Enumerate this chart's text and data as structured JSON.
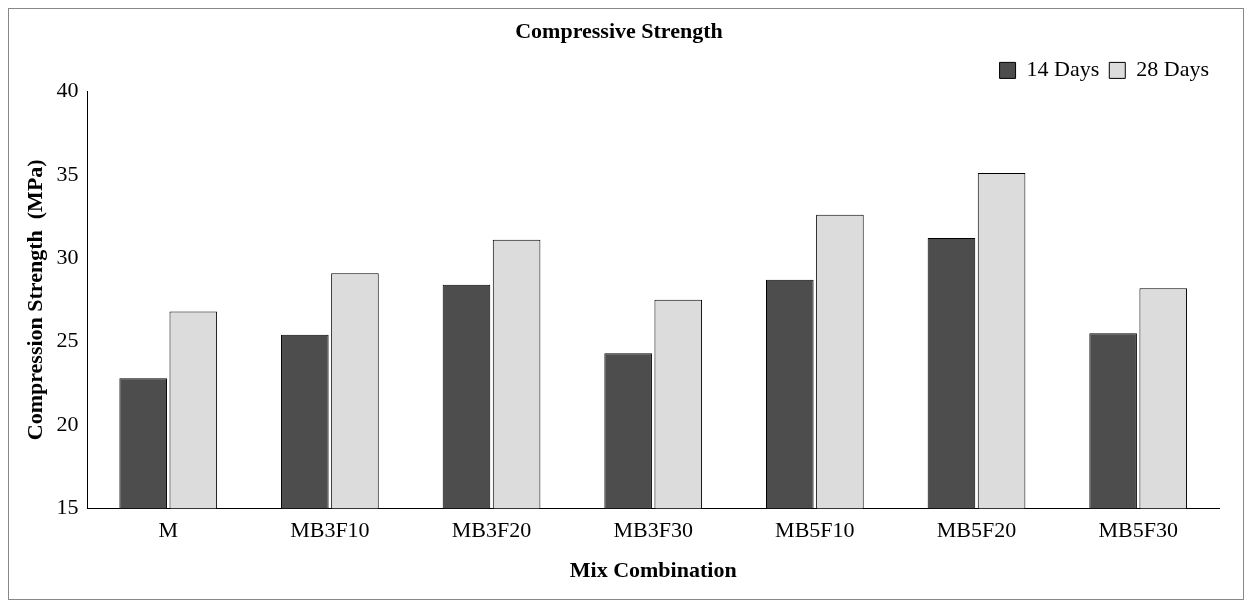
{
  "chart_data": {
    "type": "bar",
    "title": "Compressive Strength",
    "xlabel": "Mix Combination",
    "ylabel": "Compression Strength  (MPa)",
    "categories": [
      "M",
      "MB3F10",
      "MB3F20",
      "MB3F30",
      "MB5F10",
      "MB5F20",
      "MB5F30"
    ],
    "series": [
      {
        "name": "14 Days",
        "color": "#4d4d4d",
        "values": [
          22.8,
          25.4,
          28.4,
          24.3,
          28.7,
          31.2,
          25.5
        ]
      },
      {
        "name": "28 Days",
        "color": "#dcdcdc",
        "values": [
          26.8,
          29.1,
          31.1,
          27.5,
          32.6,
          35.1,
          28.2
        ]
      }
    ],
    "ylim": [
      15,
      40
    ],
    "yticks": [
      15,
      20,
      25,
      30,
      35,
      40
    ],
    "grid": false,
    "legend": "top right"
  }
}
